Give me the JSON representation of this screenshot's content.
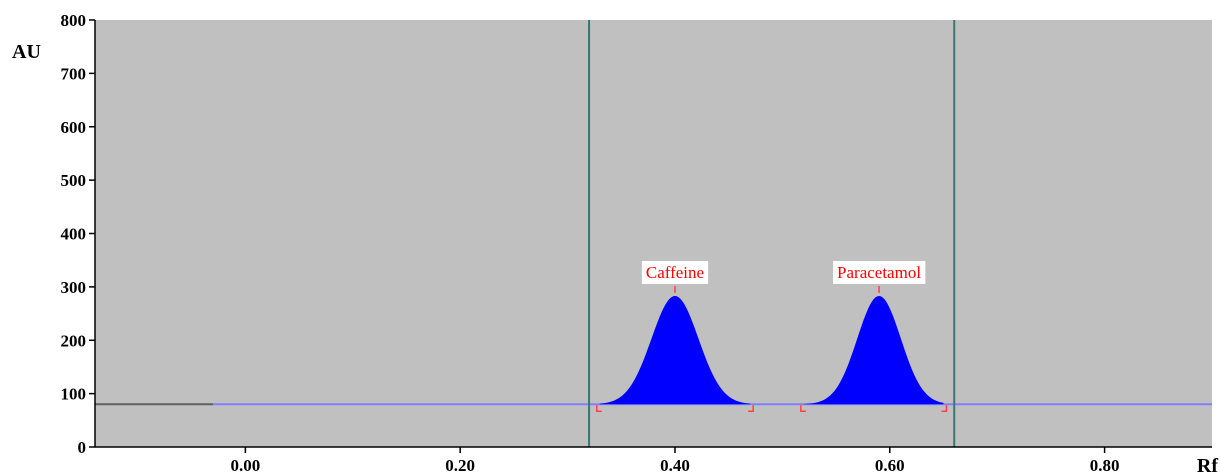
{
  "chart_data": {
    "type": "area",
    "xlabel": "Rf",
    "ylabel": "AU",
    "xlim": [
      -0.14,
      0.9
    ],
    "ylim": [
      0,
      800
    ],
    "x_ticks": [
      "0.00",
      "0.20",
      "0.40",
      "0.60",
      "0.80"
    ],
    "x_tick_values": [
      0.0,
      0.2,
      0.4,
      0.6,
      0.8
    ],
    "y_ticks": [
      "0",
      "100",
      "200",
      "300",
      "400",
      "500",
      "600",
      "700",
      "800"
    ],
    "y_tick_values": [
      0,
      100,
      200,
      300,
      400,
      500,
      600,
      700,
      800
    ],
    "baseline": 80,
    "baseline_start": -0.03,
    "grid": false,
    "plot_background": "#c0c0c0",
    "vertical_markers": [
      0.32,
      0.66
    ],
    "peaks": [
      {
        "name": "Caffeine",
        "rf": 0.4,
        "height": 283,
        "start": 0.33,
        "end": 0.47
      },
      {
        "name": "Paracetamol",
        "rf": 0.59,
        "height": 283,
        "start": 0.52,
        "end": 0.65
      }
    ],
    "colors": {
      "peak_fill": "#0000ff",
      "baseline": "#8080ff",
      "marker": "#2e7d6e",
      "label": "#ff0000",
      "bracket": "#ff4040"
    }
  }
}
